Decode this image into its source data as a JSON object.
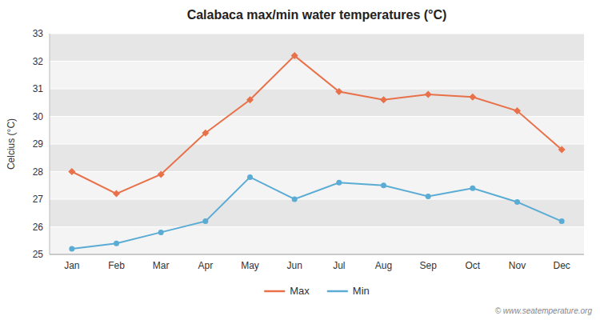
{
  "chart_data": {
    "type": "line",
    "title": "Calabaca max/min water temperatures (°C)",
    "y_label": "Celcius (°C)",
    "categories": [
      "Jan",
      "Feb",
      "Mar",
      "Apr",
      "May",
      "Jun",
      "Jul",
      "Aug",
      "Sep",
      "Oct",
      "Nov",
      "Dec"
    ],
    "series": [
      {
        "name": "Max",
        "color": "#e8714a",
        "marker": "diamond",
        "values": [
          28.0,
          27.2,
          27.9,
          29.4,
          30.6,
          32.2,
          30.9,
          30.6,
          30.8,
          30.7,
          30.2,
          28.8
        ]
      },
      {
        "name": "Min",
        "color": "#5bacd4",
        "marker": "circle",
        "values": [
          25.2,
          25.4,
          25.8,
          26.2,
          27.8,
          27.0,
          27.6,
          27.5,
          27.1,
          27.4,
          26.9,
          26.2
        ]
      }
    ],
    "ylim": [
      25,
      33
    ],
    "yticks": [
      25,
      26,
      27,
      28,
      29,
      30,
      31,
      32,
      33
    ],
    "grid": true,
    "legend": "bottom",
    "annotations": [
      "© www.seatemperature.org"
    ]
  }
}
